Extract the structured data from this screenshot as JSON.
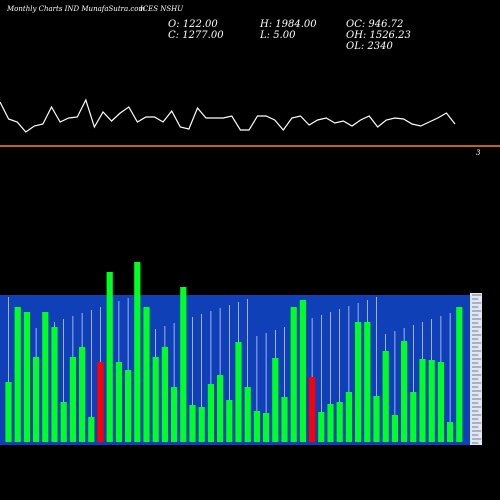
{
  "header": {
    "site_label": "Monthly Charts IND",
    "site_domain": "MunafaSutra.com",
    "symbol_label": "ICES NSHU"
  },
  "ohlc": {
    "open": "O: 122.00",
    "close": "C: 1277.00",
    "high": "H: 1984.00",
    "low": "L: 5.00",
    "oc": "OC: 946.72",
    "oh": "OH: 1526.23",
    "ol": "OL: 2340"
  },
  "colors": {
    "background": "#000000",
    "line": "#ffffff",
    "level_line": "#ff8c00",
    "volume_panel": "#1040b8",
    "up_bar": "#00ff22",
    "down_bar": "#ff0000"
  },
  "level_label": "3",
  "chart_data": [
    {
      "type": "line",
      "series": [
        {
          "values": [
            102,
            119,
            122,
            132,
            126,
            124,
            107,
            122,
            118,
            117,
            100,
            127,
            112,
            121,
            113,
            107,
            122,
            117,
            117,
            122,
            111,
            127,
            129,
            108,
            118,
            118,
            118,
            116,
            130,
            130,
            116,
            116,
            120,
            130,
            118,
            116,
            125,
            120,
            118,
            123,
            121,
            126,
            120,
            116,
            127,
            120,
            118,
            119,
            124,
            126,
            122,
            118,
            113,
            124
          ]
        }
      ],
      "level_line": {
        "label": "3"
      }
    },
    {
      "type": "bar",
      "series": [
        {
          "values": [
            60,
            135,
            130,
            85,
            130,
            115,
            40,
            85,
            95,
            25,
            80,
            170,
            80,
            72,
            180,
            135,
            85,
            95,
            55,
            155,
            37,
            35,
            58,
            67,
            42,
            100,
            55,
            31,
            29,
            84,
            45,
            135,
            142,
            65,
            30,
            38,
            40,
            50,
            120,
            120,
            46,
            91,
            27,
            101,
            50,
            83,
            82,
            80,
            20,
            135
          ]
        }
      ],
      "colors": [
        "up",
        "up",
        "up",
        "up",
        "up",
        "up",
        "up",
        "up",
        "up",
        "up",
        "down",
        "up",
        "up",
        "up",
        "up",
        "up",
        "up",
        "up",
        "up",
        "up",
        "up",
        "up",
        "up",
        "up",
        "up",
        "up",
        "up",
        "up",
        "up",
        "up",
        "up",
        "up",
        "up",
        "down",
        "up",
        "up",
        "up",
        "up",
        "up",
        "up",
        "up",
        "up",
        "up",
        "up",
        "up",
        "up",
        "up",
        "up",
        "up",
        "up"
      ]
    }
  ]
}
